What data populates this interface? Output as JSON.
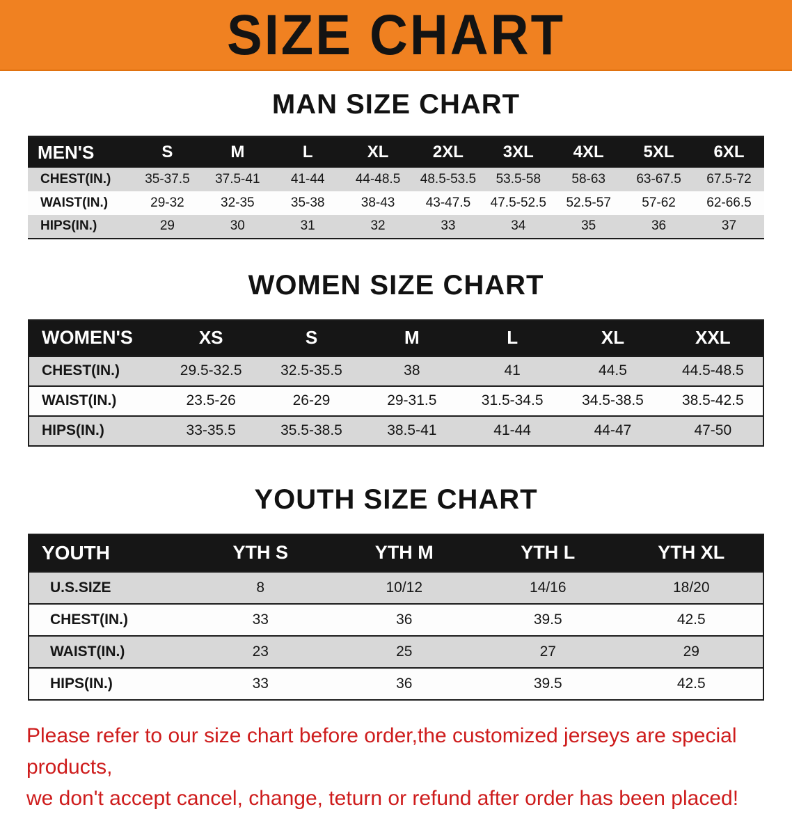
{
  "banner": {
    "title": "SIZE CHART"
  },
  "colors": {
    "banner_bg": "#f08121",
    "table_header_bg": "#161616",
    "row_stripe": "#d8d8d8",
    "disclaimer_text": "#ce1c1c"
  },
  "sections": [
    {
      "heading": "MAN SIZE CHART",
      "table": {
        "header": [
          "MEN'S",
          "S",
          "M",
          "L",
          "XL",
          "2XL",
          "3XL",
          "4XL",
          "5XL",
          "6XL"
        ],
        "rows": [
          [
            "CHEST(IN.)",
            "35-37.5",
            "37.5-41",
            "41-44",
            "44-48.5",
            "48.5-53.5",
            "53.5-58",
            "58-63",
            "63-67.5",
            "67.5-72"
          ],
          [
            "WAIST(IN.)",
            "29-32",
            "32-35",
            "35-38",
            "38-43",
            "43-47.5",
            "47.5-52.5",
            "52.5-57",
            "57-62",
            "62-66.5"
          ],
          [
            "HIPS(IN.)",
            "29",
            "30",
            "31",
            "32",
            "33",
            "34",
            "35",
            "36",
            "37"
          ]
        ]
      }
    },
    {
      "heading": "WOMEN SIZE CHART",
      "table": {
        "header": [
          "WOMEN'S",
          "XS",
          "S",
          "M",
          "L",
          "XL",
          "XXL"
        ],
        "rows": [
          [
            "CHEST(IN.)",
            "29.5-32.5",
            "32.5-35.5",
            "38",
            "41",
            "44.5",
            "44.5-48.5"
          ],
          [
            "WAIST(IN.)",
            "23.5-26",
            "26-29",
            "29-31.5",
            "31.5-34.5",
            "34.5-38.5",
            "38.5-42.5"
          ],
          [
            "HIPS(IN.)",
            "33-35.5",
            "35.5-38.5",
            "38.5-41",
            "41-44",
            "44-47",
            "47-50"
          ]
        ]
      }
    },
    {
      "heading": "YOUTH SIZE CHART",
      "table": {
        "header": [
          "YOUTH",
          "YTH S",
          "YTH M",
          "YTH L",
          "YTH XL"
        ],
        "rows": [
          [
            "U.S.SIZE",
            "8",
            "10/12",
            "14/16",
            "18/20"
          ],
          [
            "CHEST(IN.)",
            "33",
            "36",
            "39.5",
            "42.5"
          ],
          [
            "WAIST(IN.)",
            "23",
            "25",
            "27",
            "29"
          ],
          [
            "HIPS(IN.)",
            "33",
            "36",
            "39.5",
            "42.5"
          ]
        ]
      }
    }
  ],
  "disclaimer": {
    "line1": "Please refer to our size chart before order,the customized jerseys are special products,",
    "line2": "we don't accept cancel, change, teturn or refund after order has been placed!"
  }
}
